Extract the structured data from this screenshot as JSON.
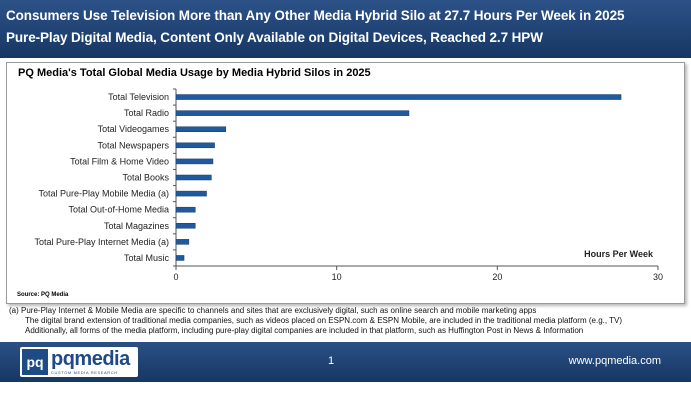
{
  "header": {
    "line1": "Consumers Use Television More than Any Other Media Hybrid Silo at 27.7 Hours Per Week in 2025",
    "line2": "Pure-Play Digital Media, Content Only Available on Digital Devices, Reached 2.7 HPW"
  },
  "chart_data": {
    "type": "bar",
    "orientation": "horizontal",
    "title": "PQ Media's Total Global Media Usage by Media Hybrid Silos in 2025",
    "categories": [
      "Total Television",
      "Total Radio",
      "Total Videogames",
      "Total Newspapers",
      "Total Film & Home Video",
      "Total Books",
      "Total Pure-Play Mobile Media (a)",
      "Total Out-of-Home Media",
      "Total Magazines",
      "Total Pure-Play Internet Media (a)",
      "Total Music"
    ],
    "values": [
      27.7,
      14.5,
      3.1,
      2.4,
      2.3,
      2.2,
      1.9,
      1.2,
      1.2,
      0.8,
      0.5
    ],
    "xlabel": "Hours Per Week",
    "xlim": [
      0,
      30
    ],
    "xticks": [
      "0",
      "10",
      "20",
      "30"
    ],
    "bar_color": "#1f5a9e",
    "grid": false
  },
  "source": "Source: PQ Media",
  "notes": {
    "line1": "(a) Pure-Play Internet & Mobile Media are specific to channels and sites that are exclusively digital, such as online search and mobile marketing apps",
    "line2": "The digital brand extension of traditional media companies, such as videos placed on ESPN.com & ESPN Mobile, are included in the traditional media platform (e.g., TV)",
    "line3": "Additionally, all forms of the media platform, including pure-play digital companies are included in that platform, such as Huffington Post in News & Information"
  },
  "footer": {
    "logo_mark": "pq",
    "logo_text": "pqmedia",
    "logo_tagline": "CUSTOM MEDIA RESEARCH",
    "page_number": "1",
    "website": "www.pqmedia.com"
  }
}
